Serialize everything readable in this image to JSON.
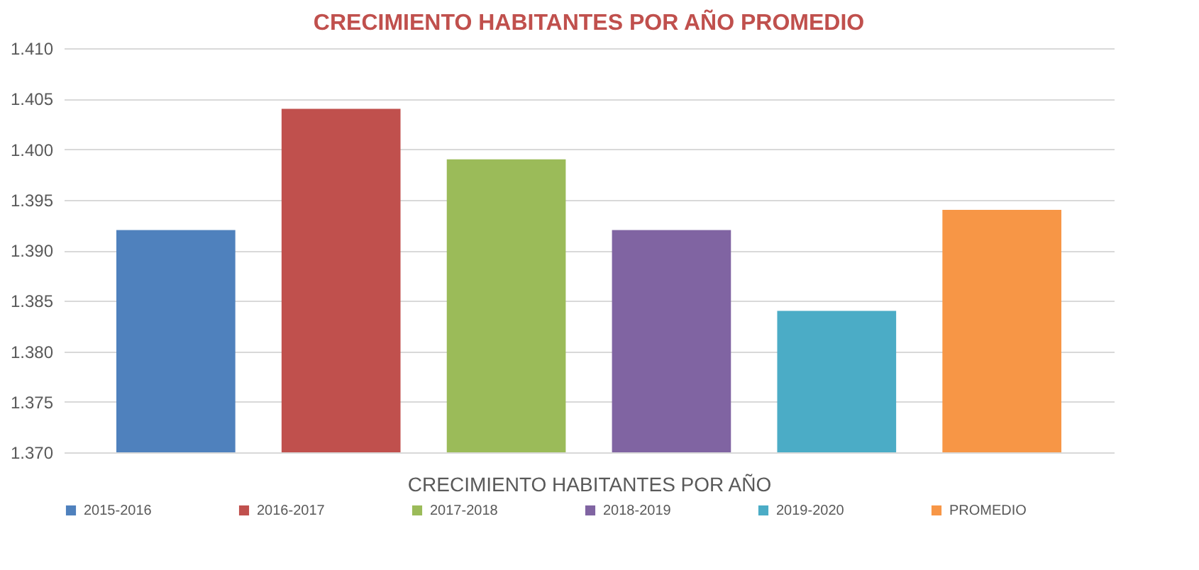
{
  "chart_data": {
    "type": "bar",
    "title": "CRECIMIENTO HABITANTES POR AÑO PROMEDIO",
    "xlabel": "CRECIMIENTO HABITANTES POR AÑO",
    "categories": [
      null
    ],
    "series": [
      {
        "name": "2015-2016",
        "color": "#4f81bd",
        "values": [
          1.392
        ]
      },
      {
        "name": "2016-2017",
        "color": "#c0504d",
        "values": [
          1.404
        ]
      },
      {
        "name": "2017-2018",
        "color": "#9bbb59",
        "values": [
          1.399
        ]
      },
      {
        "name": "2018-2019",
        "color": "#8064a2",
        "values": [
          1.392
        ]
      },
      {
        "name": "2019-2020",
        "color": "#4bacc6",
        "values": [
          1.384
        ]
      },
      {
        "name": "PROMEDIO",
        "color": "#f79646",
        "values": [
          1.394
        ]
      }
    ],
    "ylim": [
      1.37,
      1.41
    ],
    "yticks": [
      {
        "value": 1.37,
        "label": "1.370"
      },
      {
        "value": 1.375,
        "label": "1.375"
      },
      {
        "value": 1.38,
        "label": "1.380"
      },
      {
        "value": 1.385,
        "label": "1.385"
      },
      {
        "value": 1.39,
        "label": "1.390"
      },
      {
        "value": 1.395,
        "label": "1.395"
      },
      {
        "value": 1.4,
        "label": "1.400"
      },
      {
        "value": 1.405,
        "label": "1.405"
      },
      {
        "value": 1.41,
        "label": "1.410"
      }
    ],
    "grid": "y",
    "legend": "bottom"
  }
}
